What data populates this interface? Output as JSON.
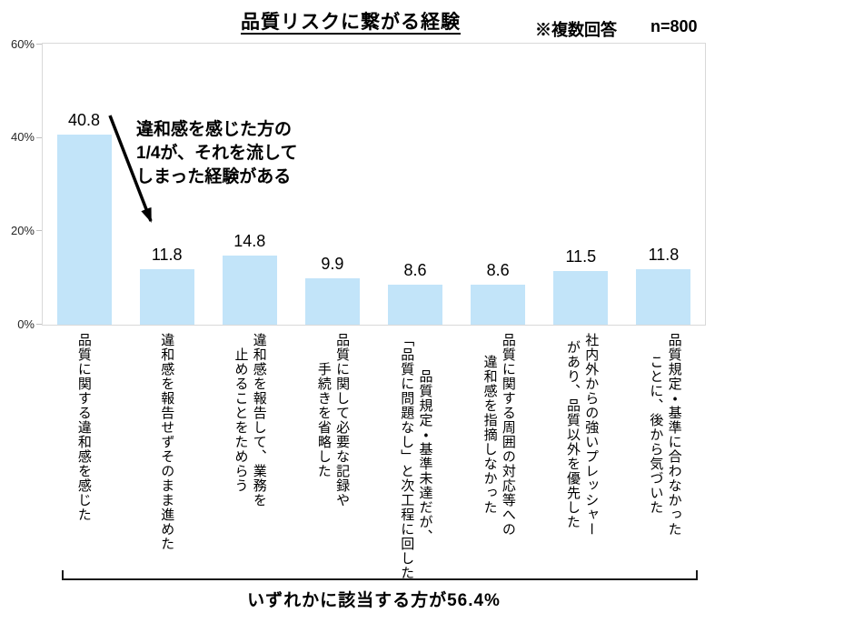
{
  "header": {
    "title": "品質リスクに繋がる経験",
    "note": "※複数回答",
    "sample": "n=800"
  },
  "annotation": "違和感を感じた方の\n1/4が、それを流して\nしまった経験がある",
  "footer_summary": "いずれかに該当する方が56.4%",
  "chart_data": {
    "type": "bar",
    "title": "品質リスクに繋がる経験",
    "categories": [
      "品質に関する違和感を感じた",
      "違和感を報告せずそのまま進めた",
      "違和感を報告して、業務を\n止めることをためらう",
      "品質に関して必要な記録や\n手続きを省略した",
      "品質規定・基準未達だが、\n「品質に問題なし」と次工程に回した",
      "品質に関する周囲の対応等への\n違和感を指摘しなかった",
      "社内外からの強いプレッシャー\nがあり、品質以外を優先した",
      "品質規定・基準に合わなかった\nことに、後から気づいた"
    ],
    "values": [
      40.8,
      11.8,
      14.8,
      9.9,
      8.6,
      8.6,
      11.5,
      11.8
    ],
    "unit": "%",
    "xlabel": "",
    "ylabel": "",
    "ylim": [
      0,
      60
    ],
    "yticks": {
      "values": [
        0,
        20,
        40,
        60
      ],
      "labels": [
        "0%",
        "20%",
        "40%",
        "60%"
      ]
    },
    "grid": false,
    "legend": false,
    "bar_color": "#C2E4F9",
    "annotation_text": "違和感を感じた方の1/4が、それを流してしまった経験がある",
    "bracket_summary": "いずれかに該当する方が56.4%"
  }
}
